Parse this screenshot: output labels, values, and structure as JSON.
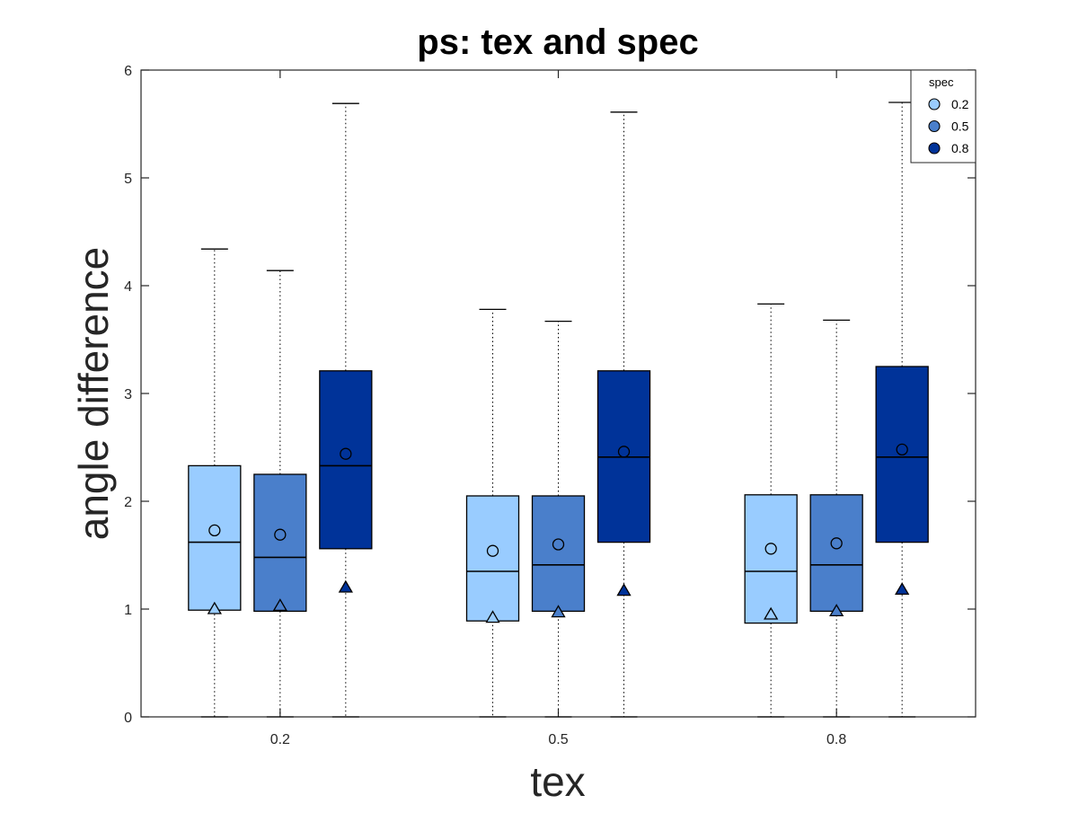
{
  "chart_data": {
    "type": "box",
    "title": "ps: tex and spec",
    "xlabel": "tex",
    "ylabel": "angle difference",
    "ylim": [
      0,
      6
    ],
    "yticks": [
      0,
      1,
      2,
      3,
      4,
      5,
      6
    ],
    "categories": [
      "0.2",
      "0.5",
      "0.8"
    ],
    "grid": false,
    "legend": {
      "title": "spec",
      "position": "top-right"
    },
    "marker_meaning": {
      "circle": "mean",
      "triangle": "lower marker value"
    },
    "series": [
      {
        "name": "0.2",
        "color": "#99CCFF",
        "boxes": [
          {
            "min": 0,
            "q1": 0.99,
            "median": 1.62,
            "q3": 2.33,
            "max": 4.34,
            "mean": 1.73,
            "triangle": 1.0
          },
          {
            "min": 0,
            "q1": 0.89,
            "median": 1.35,
            "q3": 2.05,
            "max": 3.78,
            "mean": 1.54,
            "triangle": 0.92
          },
          {
            "min": 0,
            "q1": 0.87,
            "median": 1.35,
            "q3": 2.06,
            "max": 3.83,
            "mean": 1.56,
            "triangle": 0.95
          }
        ]
      },
      {
        "name": "0.5",
        "color": "#4A7FCB",
        "boxes": [
          {
            "min": 0,
            "q1": 0.98,
            "median": 1.48,
            "q3": 2.25,
            "max": 4.14,
            "mean": 1.69,
            "triangle": 1.03
          },
          {
            "min": 0,
            "q1": 0.98,
            "median": 1.41,
            "q3": 2.05,
            "max": 3.67,
            "mean": 1.6,
            "triangle": 0.97
          },
          {
            "min": 0,
            "q1": 0.98,
            "median": 1.41,
            "q3": 2.06,
            "max": 3.68,
            "mean": 1.61,
            "triangle": 0.98
          }
        ]
      },
      {
        "name": "0.8",
        "color": "#003399",
        "boxes": [
          {
            "min": 0,
            "q1": 1.56,
            "median": 2.33,
            "q3": 3.21,
            "max": 5.69,
            "mean": 2.44,
            "triangle": 1.2
          },
          {
            "min": 0,
            "q1": 1.62,
            "median": 2.41,
            "q3": 3.21,
            "max": 5.61,
            "mean": 2.46,
            "triangle": 1.17
          },
          {
            "min": 0,
            "q1": 1.62,
            "median": 2.41,
            "q3": 3.25,
            "max": 5.7,
            "mean": 2.48,
            "triangle": 1.18
          }
        ]
      }
    ]
  }
}
